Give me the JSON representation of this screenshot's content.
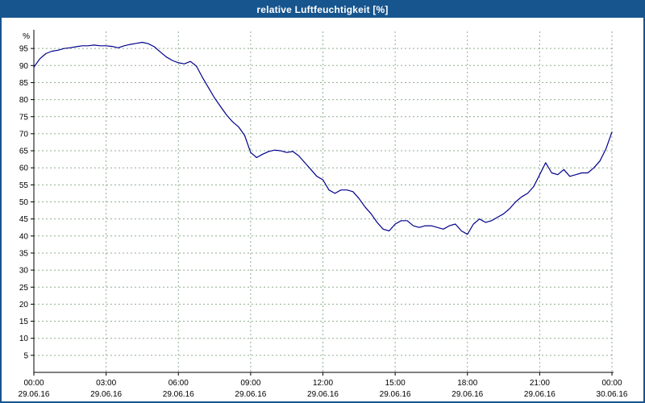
{
  "window": {
    "title": "relative Luftfeuchtigkeit [%]"
  },
  "colors": {
    "titlebar_bg": "#17558e",
    "titlebar_text": "#ffffff",
    "line": "#00008b",
    "grid": "#8fae8f",
    "axis": "#000000",
    "plot_bg": "#ffffff"
  },
  "chart_data": {
    "type": "line",
    "title": "relative Luftfeuchtigkeit [%]",
    "ylabel": "%",
    "xlabel": "",
    "ylim": [
      0,
      100
    ],
    "xlim_hours": [
      0,
      24
    ],
    "grid": true,
    "legend": "none",
    "yticks": [
      5,
      10,
      15,
      20,
      25,
      30,
      35,
      40,
      45,
      50,
      55,
      60,
      65,
      70,
      75,
      80,
      85,
      90,
      95
    ],
    "xticks": [
      {
        "hour": 0,
        "time": "00:00",
        "date": "29.06.16"
      },
      {
        "hour": 3,
        "time": "03:00",
        "date": "29.06.16"
      },
      {
        "hour": 6,
        "time": "06:00",
        "date": "29.06.16"
      },
      {
        "hour": 9,
        "time": "09:00",
        "date": "29.06.16"
      },
      {
        "hour": 12,
        "time": "12:00",
        "date": "29.06.16"
      },
      {
        "hour": 15,
        "time": "15:00",
        "date": "29.06.16"
      },
      {
        "hour": 18,
        "time": "18:00",
        "date": "29.06.16"
      },
      {
        "hour": 21,
        "time": "21:00",
        "date": "29.06.16"
      },
      {
        "hour": 24,
        "time": "00:00",
        "date": "30.06.16"
      }
    ],
    "series": [
      {
        "name": "relative Luftfeuchtigkeit",
        "unit": "%",
        "x_hours": [
          0,
          0.25,
          0.5,
          0.75,
          1,
          1.25,
          1.5,
          1.75,
          2,
          2.25,
          2.5,
          2.75,
          3,
          3.25,
          3.5,
          3.75,
          4,
          4.25,
          4.5,
          4.75,
          5,
          5.25,
          5.5,
          5.75,
          6,
          6.25,
          6.5,
          6.75,
          7,
          7.25,
          7.5,
          7.75,
          8,
          8.25,
          8.5,
          8.75,
          9,
          9.25,
          9.5,
          9.75,
          10,
          10.25,
          10.5,
          10.75,
          11,
          11.25,
          11.5,
          11.75,
          12,
          12.25,
          12.5,
          12.75,
          13,
          13.25,
          13.5,
          13.75,
          14,
          14.25,
          14.5,
          14.75,
          15,
          15.25,
          15.5,
          15.75,
          16,
          16.25,
          16.5,
          16.75,
          17,
          17.25,
          17.5,
          17.75,
          18,
          18.25,
          18.5,
          18.75,
          19,
          19.25,
          19.5,
          19.75,
          20,
          20.25,
          20.5,
          20.75,
          21,
          21.25,
          21.5,
          21.75,
          22,
          22.25,
          22.5,
          22.75,
          23,
          23.25,
          23.5,
          23.75,
          24
        ],
        "values": [
          89.5,
          92,
          93.5,
          94.2,
          94.5,
          95,
          95.2,
          95.5,
          95.8,
          95.8,
          96,
          95.8,
          95.8,
          95.6,
          95.2,
          95.8,
          96.2,
          96.5,
          96.8,
          96.4,
          95.5,
          94,
          92.5,
          91.5,
          90.8,
          90.5,
          91.2,
          89.8,
          86.5,
          83.5,
          80.5,
          78,
          75.5,
          73.5,
          72,
          69.5,
          64.5,
          63,
          64,
          64.8,
          65.2,
          65,
          64.5,
          64.8,
          63.5,
          61.5,
          59.5,
          57.5,
          56.5,
          53.5,
          52.5,
          53.5,
          53.5,
          53,
          51,
          48.5,
          46.5,
          44,
          42,
          41.5,
          43.5,
          44.5,
          44.5,
          43,
          42.5,
          43,
          43,
          42.5,
          42,
          43,
          43.5,
          41.5,
          40.5,
          43.5,
          45,
          44,
          44.5,
          45.5,
          46.5,
          48,
          50,
          51.5,
          52.5,
          54.5,
          58,
          61.5,
          58.5,
          58,
          59.5,
          57.5,
          58,
          58.5,
          58.5,
          60,
          62,
          65.5,
          70.5
        ]
      }
    ]
  }
}
